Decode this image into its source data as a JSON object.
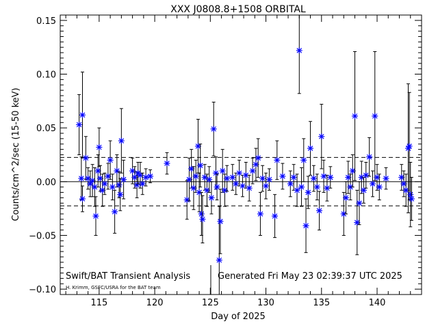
{
  "chart_data": {
    "type": "scatter",
    "title": "XXX J0808.8+1508 ORBITAL",
    "xlabel": "Day of 2025",
    "ylabel": "Counts/cm^2/sec (15-50 keV)",
    "xlim": [
      111.5,
      144.0
    ],
    "ylim": [
      -0.105,
      0.155
    ],
    "xticks": [
      115,
      120,
      125,
      130,
      135,
      140
    ],
    "xtick_labels": [
      "115",
      "120",
      "125",
      "130",
      "135",
      "140"
    ],
    "yticks": [
      -0.1,
      -0.05,
      0.0,
      0.05,
      0.1,
      0.15
    ],
    "ytick_labels": [
      "−0.10",
      "−0.05",
      "0.00",
      "0.05",
      "0.10",
      "0.15"
    ],
    "reference_lines": {
      "zero": 0.0,
      "upper_dashed": 0.0225,
      "lower_dashed": -0.0225
    },
    "annotation_left": "Swift/BAT Transient Analysis",
    "annotation_credit": "H. Krimm, GSFC/USRA for the BAT team",
    "annotation_right": "Generated Fri May 23 02:39:37 UTC 2025",
    "marker_color": "#0000ff",
    "points": [
      {
        "x": 113.2,
        "y": 0.053,
        "err": 0.028
      },
      {
        "x": 113.5,
        "y": 0.062,
        "err": 0.04
      },
      {
        "x": 113.4,
        "y": 0.003,
        "err": 0.02
      },
      {
        "x": 113.5,
        "y": -0.016,
        "err": 0.012
      },
      {
        "x": 113.8,
        "y": 0.022,
        "err": 0.02
      },
      {
        "x": 114.0,
        "y": 0.003,
        "err": 0.01
      },
      {
        "x": 114.2,
        "y": -0.002,
        "err": 0.012
      },
      {
        "x": 114.4,
        "y": 0.001,
        "err": 0.015
      },
      {
        "x": 114.6,
        "y": -0.005,
        "err": 0.018
      },
      {
        "x": 114.7,
        "y": -0.032,
        "err": 0.018
      },
      {
        "x": 114.9,
        "y": 0.01,
        "err": 0.015
      },
      {
        "x": 115.0,
        "y": 0.032,
        "err": 0.018
      },
      {
        "x": 115.1,
        "y": 0.003,
        "err": 0.012
      },
      {
        "x": 115.3,
        "y": -0.008,
        "err": 0.015
      },
      {
        "x": 115.5,
        "y": -0.002,
        "err": 0.01
      },
      {
        "x": 115.8,
        "y": 0.005,
        "err": 0.012
      },
      {
        "x": 116.0,
        "y": 0.02,
        "err": 0.018
      },
      {
        "x": 116.2,
        "y": -0.005,
        "err": 0.012
      },
      {
        "x": 116.4,
        "y": -0.028,
        "err": 0.02
      },
      {
        "x": 116.6,
        "y": 0.01,
        "err": 0.015
      },
      {
        "x": 116.8,
        "y": -0.003,
        "err": 0.012
      },
      {
        "x": 116.9,
        "y": -0.012,
        "err": 0.015
      },
      {
        "x": 117.0,
        "y": 0.038,
        "err": 0.03
      },
      {
        "x": 117.2,
        "y": 0.002,
        "err": 0.018
      },
      {
        "x": 118.0,
        "y": 0.01,
        "err": 0.012
      },
      {
        "x": 118.2,
        "y": 0.004,
        "err": 0.01
      },
      {
        "x": 118.4,
        "y": -0.003,
        "err": 0.012
      },
      {
        "x": 118.5,
        "y": 0.008,
        "err": 0.01
      },
      {
        "x": 118.7,
        "y": 0.006,
        "err": 0.012
      },
      {
        "x": 118.9,
        "y": -0.002,
        "err": 0.01
      },
      {
        "x": 119.2,
        "y": 0.004,
        "err": 0.008
      },
      {
        "x": 119.6,
        "y": 0.005,
        "err": 0.006
      },
      {
        "x": 121.1,
        "y": 0.017,
        "err": 0.01
      },
      {
        "x": 122.9,
        "y": -0.017,
        "err": 0.018
      },
      {
        "x": 123.1,
        "y": 0.002,
        "err": 0.02
      },
      {
        "x": 123.3,
        "y": 0.012,
        "err": 0.018
      },
      {
        "x": 123.5,
        "y": -0.006,
        "err": 0.02
      },
      {
        "x": 123.7,
        "y": 0.005,
        "err": 0.015
      },
      {
        "x": 123.9,
        "y": 0.033,
        "err": 0.025
      },
      {
        "x": 124.0,
        "y": -0.01,
        "err": 0.018
      },
      {
        "x": 124.1,
        "y": 0.015,
        "err": 0.02
      },
      {
        "x": 124.2,
        "y": -0.03,
        "err": 0.02
      },
      {
        "x": 124.3,
        "y": -0.035,
        "err": 0.022
      },
      {
        "x": 124.5,
        "y": 0.004,
        "err": 0.012
      },
      {
        "x": 124.7,
        "y": -0.008,
        "err": 0.015
      },
      {
        "x": 124.9,
        "y": 0.002,
        "err": 0.012
      },
      {
        "x": 125.1,
        "y": -0.015,
        "err": 0.015
      },
      {
        "x": 125.3,
        "y": 0.049,
        "err": 0.025
      },
      {
        "x": 125.5,
        "y": 0.008,
        "err": 0.015
      },
      {
        "x": 125.6,
        "y": -0.005,
        "err": 0.012
      },
      {
        "x": 125.8,
        "y": -0.073,
        "err": 0.05
      },
      {
        "x": 125.9,
        "y": -0.037,
        "err": 0.03
      },
      {
        "x": 126.1,
        "y": 0.01,
        "err": 0.02
      },
      {
        "x": 126.3,
        "y": -0.008,
        "err": 0.015
      },
      {
        "x": 126.5,
        "y": 0.003,
        "err": 0.012
      },
      {
        "x": 127.0,
        "y": 0.004,
        "err": 0.012
      },
      {
        "x": 127.3,
        "y": -0.002,
        "err": 0.01
      },
      {
        "x": 127.6,
        "y": 0.008,
        "err": 0.012
      },
      {
        "x": 127.9,
        "y": -0.004,
        "err": 0.01
      },
      {
        "x": 128.2,
        "y": 0.006,
        "err": 0.012
      },
      {
        "x": 128.5,
        "y": -0.006,
        "err": 0.012
      },
      {
        "x": 128.8,
        "y": 0.01,
        "err": 0.012
      },
      {
        "x": 129.1,
        "y": 0.016,
        "err": 0.015
      },
      {
        "x": 129.3,
        "y": 0.022,
        "err": 0.018
      },
      {
        "x": 129.5,
        "y": -0.03,
        "err": 0.02
      },
      {
        "x": 129.7,
        "y": 0.003,
        "err": 0.012
      },
      {
        "x": 130.0,
        "y": -0.004,
        "err": 0.012
      },
      {
        "x": 130.3,
        "y": 0.002,
        "err": 0.01
      },
      {
        "x": 130.8,
        "y": -0.032,
        "err": 0.02
      },
      {
        "x": 131.0,
        "y": 0.02,
        "err": 0.018
      },
      {
        "x": 131.5,
        "y": 0.005,
        "err": 0.012
      },
      {
        "x": 132.2,
        "y": -0.002,
        "err": 0.012
      },
      {
        "x": 132.5,
        "y": 0.004,
        "err": 0.012
      },
      {
        "x": 132.8,
        "y": -0.008,
        "err": 0.015
      },
      {
        "x": 133.0,
        "y": 0.122,
        "err": 0.04
      },
      {
        "x": 133.2,
        "y": -0.005,
        "err": 0.018
      },
      {
        "x": 133.4,
        "y": 0.02,
        "err": 0.02
      },
      {
        "x": 133.6,
        "y": -0.041,
        "err": 0.025
      },
      {
        "x": 133.8,
        "y": -0.01,
        "err": 0.015
      },
      {
        "x": 134.0,
        "y": 0.031,
        "err": 0.025
      },
      {
        "x": 134.3,
        "y": 0.003,
        "err": 0.012
      },
      {
        "x": 134.6,
        "y": -0.005,
        "err": 0.012
      },
      {
        "x": 134.8,
        "y": -0.027,
        "err": 0.018
      },
      {
        "x": 135.0,
        "y": 0.042,
        "err": 0.03
      },
      {
        "x": 135.2,
        "y": 0.005,
        "err": 0.015
      },
      {
        "x": 135.5,
        "y": -0.006,
        "err": 0.012
      },
      {
        "x": 135.8,
        "y": 0.004,
        "err": 0.01
      },
      {
        "x": 137.0,
        "y": -0.03,
        "err": 0.02
      },
      {
        "x": 137.2,
        "y": -0.015,
        "err": 0.015
      },
      {
        "x": 137.4,
        "y": 0.004,
        "err": 0.015
      },
      {
        "x": 137.6,
        "y": -0.005,
        "err": 0.012
      },
      {
        "x": 137.8,
        "y": 0.01,
        "err": 0.015
      },
      {
        "x": 138.0,
        "y": 0.061,
        "err": 0.06
      },
      {
        "x": 138.2,
        "y": -0.038,
        "err": 0.03
      },
      {
        "x": 138.4,
        "y": -0.02,
        "err": 0.02
      },
      {
        "x": 138.6,
        "y": 0.004,
        "err": 0.015
      },
      {
        "x": 138.8,
        "y": -0.008,
        "err": 0.012
      },
      {
        "x": 139.0,
        "y": 0.006,
        "err": 0.012
      },
      {
        "x": 139.3,
        "y": 0.023,
        "err": 0.018
      },
      {
        "x": 139.6,
        "y": -0.002,
        "err": 0.012
      },
      {
        "x": 139.8,
        "y": 0.061,
        "err": 0.06
      },
      {
        "x": 140.0,
        "y": 0.004,
        "err": 0.012
      },
      {
        "x": 140.2,
        "y": -0.005,
        "err": 0.012
      },
      {
        "x": 140.8,
        "y": 0.003,
        "err": 0.01
      },
      {
        "x": 142.2,
        "y": 0.004,
        "err": 0.012
      },
      {
        "x": 142.4,
        "y": -0.002,
        "err": 0.012
      },
      {
        "x": 142.6,
        "y": -0.008,
        "err": 0.015
      },
      {
        "x": 142.8,
        "y": 0.031,
        "err": 0.06
      },
      {
        "x": 142.9,
        "y": 0.033,
        "err": 0.05
      },
      {
        "x": 143.0,
        "y": -0.012,
        "err": 0.03
      },
      {
        "x": 143.1,
        "y": -0.016,
        "err": 0.02
      }
    ]
  }
}
